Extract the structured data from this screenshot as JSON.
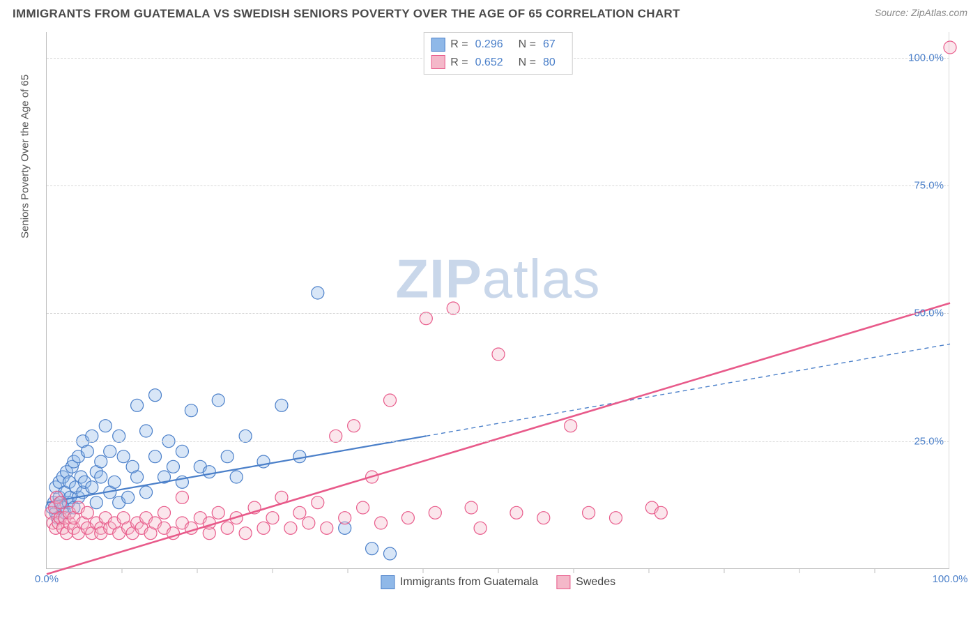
{
  "header": {
    "title": "IMMIGRANTS FROM GUATEMALA VS SWEDISH SENIORS POVERTY OVER THE AGE OF 65 CORRELATION CHART",
    "source_prefix": "Source: ",
    "source_name": "ZipAtlas.com"
  },
  "chart": {
    "type": "scatter",
    "y_axis_label": "Seniors Poverty Over the Age of 65",
    "xlim": [
      0,
      100
    ],
    "ylim": [
      0,
      105
    ],
    "x_ticks": [
      0,
      100
    ],
    "x_tick_labels": [
      "0.0%",
      "100.0%"
    ],
    "y_ticks": [
      25,
      50,
      75,
      100
    ],
    "y_tick_labels": [
      "25.0%",
      "50.0%",
      "75.0%",
      "100.0%"
    ],
    "y_minor_ticks": [
      10,
      20,
      30,
      40,
      60,
      70,
      80,
      90
    ],
    "tick_label_color": "#4a7fc9",
    "grid_color": "#d8d8d8",
    "axis_color": "#bfbfbf",
    "background_color": "#ffffff",
    "marker_radius": 9,
    "marker_stroke_width": 1.2,
    "marker_fill_opacity": 0.35,
    "series": [
      {
        "id": "guatemala",
        "label": "Immigrants from Guatemala",
        "color_fill": "#8fb8e8",
        "color_stroke": "#4a7fc9",
        "R": "0.296",
        "N": "67",
        "trend": {
          "x1": 0,
          "y1": 13,
          "x2": 42,
          "y2": 26,
          "extend_x2": 100,
          "extend_y2": 44,
          "width": 2.2,
          "dash_extend": "6,5"
        },
        "points": [
          [
            0.6,
            12
          ],
          [
            0.8,
            13
          ],
          [
            1,
            11
          ],
          [
            1,
            16
          ],
          [
            1.2,
            10
          ],
          [
            1.4,
            14
          ],
          [
            1.4,
            17
          ],
          [
            1.6,
            13
          ],
          [
            1.8,
            12
          ],
          [
            1.8,
            18
          ],
          [
            2,
            11
          ],
          [
            2,
            15
          ],
          [
            2.2,
            19
          ],
          [
            2.4,
            13
          ],
          [
            2.5,
            17
          ],
          [
            2.6,
            14
          ],
          [
            2.8,
            20
          ],
          [
            3,
            12
          ],
          [
            3,
            21
          ],
          [
            3.2,
            16
          ],
          [
            3.5,
            22
          ],
          [
            3.5,
            14
          ],
          [
            3.8,
            18
          ],
          [
            4,
            25
          ],
          [
            4,
            15
          ],
          [
            4.2,
            17
          ],
          [
            4.5,
            23
          ],
          [
            5,
            16
          ],
          [
            5,
            26
          ],
          [
            5.5,
            19
          ],
          [
            5.5,
            13
          ],
          [
            6,
            21
          ],
          [
            6,
            18
          ],
          [
            6.5,
            28
          ],
          [
            7,
            15
          ],
          [
            7,
            23
          ],
          [
            7.5,
            17
          ],
          [
            8,
            26
          ],
          [
            8,
            13
          ],
          [
            8.5,
            22
          ],
          [
            9,
            14
          ],
          [
            9.5,
            20
          ],
          [
            10,
            32
          ],
          [
            10,
            18
          ],
          [
            11,
            27
          ],
          [
            11,
            15
          ],
          [
            12,
            22
          ],
          [
            12,
            34
          ],
          [
            13,
            18
          ],
          [
            13.5,
            25
          ],
          [
            14,
            20
          ],
          [
            15,
            23
          ],
          [
            15,
            17
          ],
          [
            16,
            31
          ],
          [
            17,
            20
          ],
          [
            18,
            19
          ],
          [
            19,
            33
          ],
          [
            20,
            22
          ],
          [
            21,
            18
          ],
          [
            22,
            26
          ],
          [
            24,
            21
          ],
          [
            26,
            32
          ],
          [
            28,
            22
          ],
          [
            30,
            54
          ],
          [
            33,
            8
          ],
          [
            36,
            4
          ],
          [
            38,
            3
          ]
        ]
      },
      {
        "id": "swedes",
        "label": "Swedes",
        "color_fill": "#f4b8c9",
        "color_stroke": "#e85a8a",
        "R": "0.652",
        "N": "80",
        "trend": {
          "x1": 0,
          "y1": -1,
          "x2": 100,
          "y2": 52,
          "width": 2.6
        },
        "points": [
          [
            0.5,
            11
          ],
          [
            0.7,
            9
          ],
          [
            0.9,
            12
          ],
          [
            1,
            8
          ],
          [
            1.1,
            14
          ],
          [
            1.3,
            9
          ],
          [
            1.5,
            10
          ],
          [
            1.5,
            13
          ],
          [
            1.8,
            8
          ],
          [
            2,
            10
          ],
          [
            2.2,
            7
          ],
          [
            2.5,
            9
          ],
          [
            2.5,
            11
          ],
          [
            3,
            8
          ],
          [
            3,
            10
          ],
          [
            3.5,
            7
          ],
          [
            3.5,
            12
          ],
          [
            4,
            9
          ],
          [
            4.5,
            8
          ],
          [
            4.5,
            11
          ],
          [
            5,
            7
          ],
          [
            5.5,
            9
          ],
          [
            6,
            8
          ],
          [
            6,
            7
          ],
          [
            6.5,
            10
          ],
          [
            7,
            8
          ],
          [
            7.5,
            9
          ],
          [
            8,
            7
          ],
          [
            8.5,
            10
          ],
          [
            9,
            8
          ],
          [
            9.5,
            7
          ],
          [
            10,
            9
          ],
          [
            10.5,
            8
          ],
          [
            11,
            10
          ],
          [
            11.5,
            7
          ],
          [
            12,
            9
          ],
          [
            13,
            8
          ],
          [
            13,
            11
          ],
          [
            14,
            7
          ],
          [
            15,
            9
          ],
          [
            15,
            14
          ],
          [
            16,
            8
          ],
          [
            17,
            10
          ],
          [
            18,
            7
          ],
          [
            18,
            9
          ],
          [
            19,
            11
          ],
          [
            20,
            8
          ],
          [
            21,
            10
          ],
          [
            22,
            7
          ],
          [
            23,
            12
          ],
          [
            24,
            8
          ],
          [
            25,
            10
          ],
          [
            26,
            14
          ],
          [
            27,
            8
          ],
          [
            28,
            11
          ],
          [
            29,
            9
          ],
          [
            30,
            13
          ],
          [
            31,
            8
          ],
          [
            32,
            26
          ],
          [
            33,
            10
          ],
          [
            34,
            28
          ],
          [
            35,
            12
          ],
          [
            36,
            18
          ],
          [
            37,
            9
          ],
          [
            38,
            33
          ],
          [
            40,
            10
          ],
          [
            42,
            49
          ],
          [
            43,
            11
          ],
          [
            45,
            51
          ],
          [
            47,
            12
          ],
          [
            48,
            8
          ],
          [
            50,
            42
          ],
          [
            52,
            11
          ],
          [
            55,
            10
          ],
          [
            58,
            28
          ],
          [
            60,
            11
          ],
          [
            63,
            10
          ],
          [
            67,
            12
          ],
          [
            68,
            11
          ],
          [
            100,
            102
          ]
        ]
      }
    ],
    "legend_bottom": [
      {
        "series": "guatemala"
      },
      {
        "series": "swedes"
      }
    ],
    "watermark": {
      "text_bold": "ZIP",
      "text_light": "atlas",
      "color": "#c9d7ea",
      "fontsize": 78
    }
  }
}
